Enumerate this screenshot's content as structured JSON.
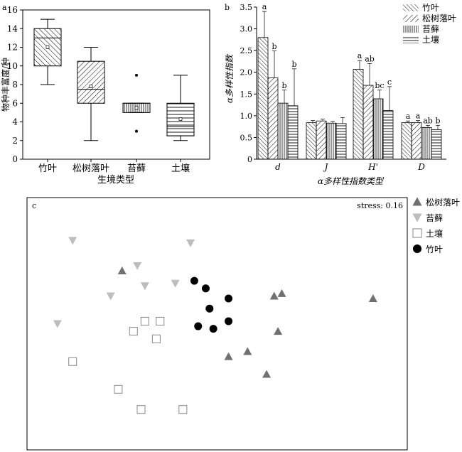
{
  "panel_a": {
    "letter": "a",
    "chart_data": {
      "type": "box",
      "categories": [
        "竹叶",
        "松树落叶",
        "苔藓",
        "土壤"
      ],
      "ylabel": "物种丰富度/种",
      "xlabel": "生境类型",
      "ylim": [
        0,
        16
      ],
      "yticks": [
        0,
        2,
        4,
        6,
        8,
        10,
        12,
        14,
        16
      ],
      "boxes": [
        {
          "category": "竹叶",
          "min": 8,
          "q1": 10,
          "median": 13,
          "q3": 14,
          "max": 15,
          "mean": 12,
          "outliers": []
        },
        {
          "category": "松树落叶",
          "min": 2,
          "q1": 6,
          "median": 7.5,
          "q3": 10.5,
          "max": 12,
          "mean": 7.8,
          "outliers": []
        },
        {
          "category": "苔藓",
          "min": 5,
          "q1": 5,
          "median": 6,
          "q3": 6,
          "max": 6,
          "mean": 5.5,
          "outliers": [
            9,
            3
          ]
        },
        {
          "category": "土壤",
          "min": 2,
          "q1": 2.5,
          "median": 3.5,
          "q3": 6,
          "max": 9,
          "mean": 4.3,
          "outliers": []
        }
      ]
    }
  },
  "panel_b": {
    "letter": "b",
    "chart_data": {
      "type": "bar",
      "ylabel": "α多样性指数",
      "xlabel": "α多样性指数类型",
      "ylim": [
        0,
        3.5
      ],
      "yticks": [
        "0",
        "0.5",
        "1.0",
        "1.5",
        "2.0",
        "2.5",
        "3.0",
        "3.5"
      ],
      "groups": [
        "d",
        "J",
        "H'",
        "D"
      ],
      "series": [
        {
          "name": "竹叶",
          "values": [
            2.8,
            0.84,
            2.07,
            0.84
          ],
          "err": [
            0.6,
            0.05,
            0.2,
            0.04
          ],
          "letters": [
            "a",
            "",
            "a",
            "a"
          ]
        },
        {
          "name": "松树落叶",
          "values": [
            1.87,
            0.88,
            1.7,
            0.84
          ],
          "err": [
            0.62,
            0.04,
            0.5,
            0.05
          ],
          "letters": [
            "b",
            "",
            "ab",
            "a"
          ]
        },
        {
          "name": "苔藓",
          "values": [
            1.29,
            0.83,
            1.39,
            0.73
          ],
          "err": [
            0.3,
            0.04,
            0.2,
            0.05
          ],
          "letters": [
            "b",
            "",
            "bc",
            "ab"
          ]
        },
        {
          "name": "土壤",
          "values": [
            1.23,
            0.82,
            1.12,
            0.68
          ],
          "err": [
            0.85,
            0.14,
            0.55,
            0.1
          ],
          "letters": [
            "b",
            "",
            "c",
            "b"
          ]
        }
      ]
    }
  },
  "panel_c": {
    "letter": "c",
    "stress_label": "stress: 0.16",
    "legend": [
      "松树落叶",
      "苔藓",
      "土壤",
      "竹叶"
    ],
    "chart_data": {
      "type": "scatter",
      "xlim": [
        0,
        100
      ],
      "ylim": [
        0,
        100
      ],
      "series": [
        {
          "name": "松树落叶",
          "marker": "triangle-up",
          "color": "#707070",
          "points": [
            [
              25,
              71
            ],
            [
              65,
              61
            ],
            [
              67,
              62
            ],
            [
              91,
              60
            ],
            [
              66,
              47
            ],
            [
              58,
              39
            ],
            [
              53,
              37
            ],
            [
              63,
              30
            ]
          ]
        },
        {
          "name": "苔藓",
          "marker": "triangle-down",
          "color": "#bdbdbd",
          "points": [
            [
              12,
              83
            ],
            [
              43,
              82
            ],
            [
              29,
              73
            ],
            [
              31,
              65
            ],
            [
              39,
              66
            ],
            [
              22,
              61
            ],
            [
              8,
              50
            ]
          ]
        },
        {
          "name": "土壤",
          "marker": "square",
          "color": "#888888",
          "points": [
            [
              31,
              51
            ],
            [
              35,
              51
            ],
            [
              28,
              47
            ],
            [
              34,
              44
            ],
            [
              12,
              35
            ],
            [
              24,
              24
            ],
            [
              30,
              16
            ],
            [
              41,
              16
            ]
          ]
        },
        {
          "name": "竹叶",
          "marker": "circle",
          "color": "#000000",
          "points": [
            [
              44,
              67
            ],
            [
              47,
              64
            ],
            [
              53,
              60
            ],
            [
              48,
              56
            ],
            [
              45,
              49
            ],
            [
              49,
              48
            ],
            [
              53,
              51
            ]
          ]
        }
      ]
    }
  },
  "colors": {
    "axis": "#000000",
    "pine": "#707070",
    "moss": "#bdbdbd",
    "soil": "#888888",
    "bamboo": "#000000"
  }
}
